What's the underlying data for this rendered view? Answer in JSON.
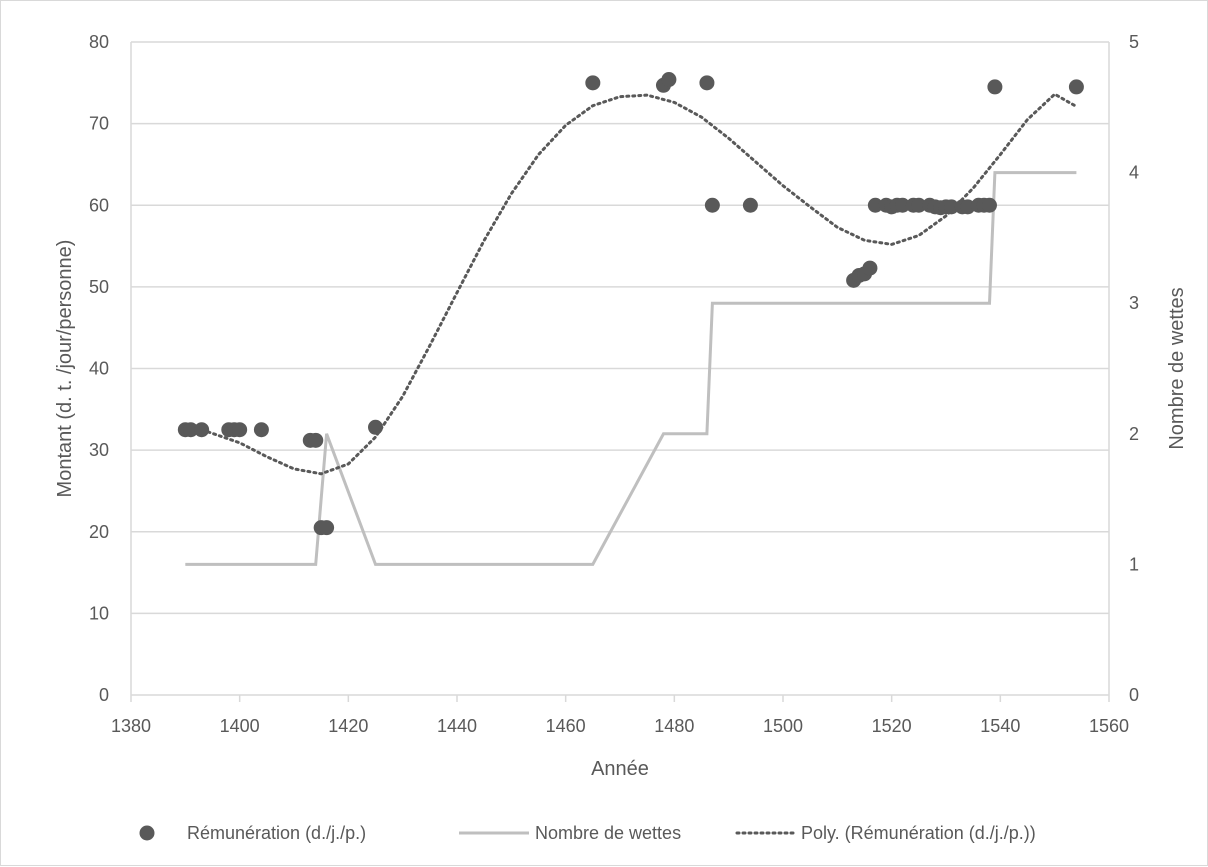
{
  "chart_data": {
    "type": "scatter",
    "title": "",
    "xlabel": "Année",
    "ylabel": "Montant (d. t. /jour/personne)",
    "y2label": "Nombre de wettes",
    "xlim": [
      1380,
      1560
    ],
    "ylim": [
      0,
      80
    ],
    "y2lim": [
      0,
      5
    ],
    "x_ticks": [
      1380,
      1400,
      1420,
      1440,
      1460,
      1480,
      1500,
      1520,
      1540,
      1560
    ],
    "y_ticks": [
      0,
      10,
      20,
      30,
      40,
      50,
      60,
      70,
      80
    ],
    "y2_ticks": [
      0,
      1,
      2,
      3,
      4,
      5
    ],
    "grid": "horizontal major gridlines on",
    "legend_position": "bottom",
    "colors": {
      "scatter": "#595959",
      "line": "#bfbfbf",
      "trend": "#595959",
      "grid": "#d9d9d9",
      "text": "#595959"
    },
    "series": [
      {
        "name": "Rémunération (d./j./p.)",
        "type": "scatter",
        "axis": "left",
        "points": [
          [
            1390,
            32.5
          ],
          [
            1391,
            32.5
          ],
          [
            1393,
            32.5
          ],
          [
            1398,
            32.5
          ],
          [
            1399,
            32.5
          ],
          [
            1400,
            32.5
          ],
          [
            1404,
            32.5
          ],
          [
            1413,
            31.2
          ],
          [
            1414,
            31.2
          ],
          [
            1415,
            20.5
          ],
          [
            1416,
            20.5
          ],
          [
            1425,
            32.8
          ],
          [
            1465,
            75
          ],
          [
            1478,
            74.7
          ],
          [
            1479,
            75.4
          ],
          [
            1486,
            75
          ],
          [
            1487,
            60
          ],
          [
            1494,
            60
          ],
          [
            1513,
            50.8
          ],
          [
            1514,
            51.4
          ],
          [
            1515,
            51.6
          ],
          [
            1516,
            52.3
          ],
          [
            1517,
            60
          ],
          [
            1519,
            60
          ],
          [
            1520,
            59.8
          ],
          [
            1521,
            60
          ],
          [
            1522,
            60
          ],
          [
            1524,
            60
          ],
          [
            1525,
            60
          ],
          [
            1527,
            60
          ],
          [
            1528,
            59.8
          ],
          [
            1529,
            59.7
          ],
          [
            1530,
            59.8
          ],
          [
            1531,
            59.8
          ],
          [
            1533,
            59.8
          ],
          [
            1534,
            59.8
          ],
          [
            1536,
            60
          ],
          [
            1537,
            60
          ],
          [
            1538,
            60
          ],
          [
            1539,
            74.5
          ],
          [
            1554,
            74.5
          ]
        ]
      },
      {
        "name": "Nombre de wettes",
        "type": "line",
        "axis": "right",
        "points": [
          [
            1390,
            1
          ],
          [
            1414,
            1
          ],
          [
            1416,
            2
          ],
          [
            1425,
            1
          ],
          [
            1465,
            1
          ],
          [
            1478,
            2
          ],
          [
            1486,
            2
          ],
          [
            1487,
            3
          ],
          [
            1538,
            3
          ],
          [
            1539,
            4
          ],
          [
            1554,
            4
          ]
        ]
      },
      {
        "name": "Poly. (Rémunération (d./j./p.))",
        "type": "trendline",
        "axis": "left",
        "points": [
          [
            1390,
            33.2
          ],
          [
            1400,
            30.9
          ],
          [
            1405,
            29.2
          ],
          [
            1410,
            27.7
          ],
          [
            1415,
            27.1
          ],
          [
            1420,
            28.3
          ],
          [
            1425,
            31.6
          ],
          [
            1430,
            36.6
          ],
          [
            1435,
            42.8
          ],
          [
            1440,
            49.3
          ],
          [
            1445,
            55.7
          ],
          [
            1450,
            61.4
          ],
          [
            1455,
            66.2
          ],
          [
            1460,
            69.8
          ],
          [
            1465,
            72.2
          ],
          [
            1470,
            73.3
          ],
          [
            1475,
            73.5
          ],
          [
            1480,
            72.6
          ],
          [
            1485,
            70.8
          ],
          [
            1490,
            68.2
          ],
          [
            1495,
            65.3
          ],
          [
            1500,
            62.4
          ],
          [
            1505,
            59.8
          ],
          [
            1510,
            57.3
          ],
          [
            1515,
            55.7
          ],
          [
            1520,
            55.2
          ],
          [
            1525,
            56.3
          ],
          [
            1530,
            58.7
          ],
          [
            1535,
            62.1
          ],
          [
            1540,
            66.2
          ],
          [
            1545,
            70.5
          ],
          [
            1550,
            73.6
          ],
          [
            1554,
            72.1
          ]
        ]
      }
    ]
  }
}
